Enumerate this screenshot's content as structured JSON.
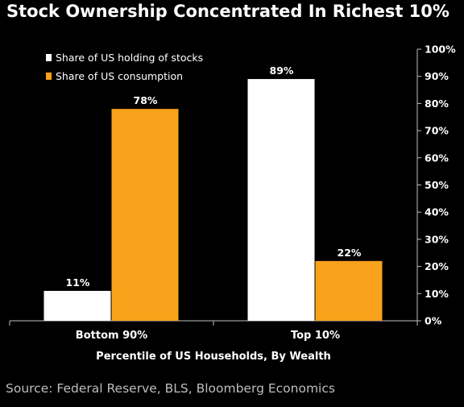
{
  "title": "Stock Ownership Concentrated In Richest 10%",
  "source": "Source: Federal Reserve, BLS, Bloomberg Economics",
  "colors": {
    "background": "#000000",
    "series_stocks": "#ffffff",
    "series_consumption": "#f9a21b",
    "axis": "#bfbfbf",
    "text": "#ffffff"
  },
  "chart_data": {
    "type": "bar",
    "categories": [
      "Bottom 90%",
      "Top 10%"
    ],
    "series": [
      {
        "name": "Share of US holding of stocks",
        "values": [
          11,
          89
        ],
        "labels": [
          "11%",
          "89%"
        ],
        "color": "#ffffff"
      },
      {
        "name": "Share of US consumption",
        "values": [
          78,
          22
        ],
        "labels": [
          "78%",
          "22%"
        ],
        "color": "#f9a21b"
      }
    ],
    "xlabel": "Percentile of US Households, By Wealth",
    "ylabel": "",
    "ylim": [
      0,
      100
    ],
    "yticks": [
      0,
      10,
      20,
      30,
      40,
      50,
      60,
      70,
      80,
      90,
      100
    ],
    "ytick_labels": [
      "0%",
      "10%",
      "20%",
      "30%",
      "40%",
      "50%",
      "60%",
      "70%",
      "80%",
      "90%",
      "100%"
    ],
    "y_axis_side": "right",
    "grid": false,
    "legend_position": "top-left"
  }
}
